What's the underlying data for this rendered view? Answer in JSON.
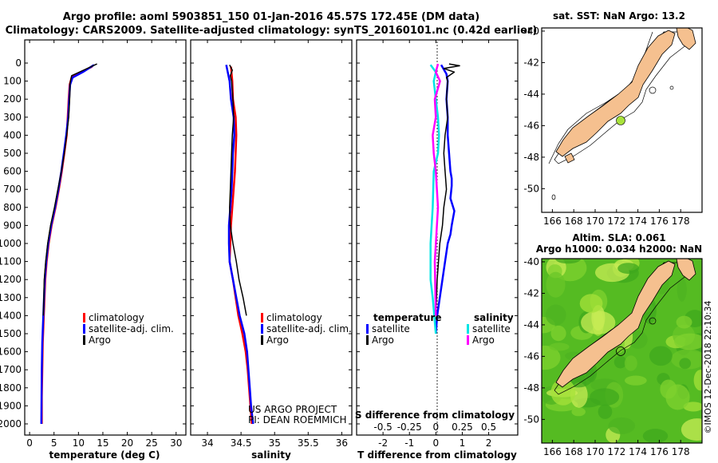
{
  "title_line1": "Argo profile: aoml 5903851_150 01-Jan-2016 45.57S 172.45E (DM data)",
  "title_line2": "Climatology: CARS2009. Satellite-adjusted climatology: synTS_20160101.nc (0.42d earlier)",
  "colors": {
    "climatology": "#ff0000",
    "satellite": "#0000ff",
    "argo": "#000000",
    "sal_satellite": "#00e5e5",
    "sal_argo": "#ff00ff",
    "land": "#f5c08f",
    "ocean_green": "#55bb22",
    "argo_marker": "#a9e23c"
  },
  "depth_ticks": [
    "0",
    "100",
    "200",
    "300",
    "400",
    "500",
    "600",
    "700",
    "800",
    "900",
    "1000",
    "1100",
    "1200",
    "1300",
    "1400",
    "1500",
    "1600",
    "1700",
    "1800",
    "1900",
    "2000"
  ],
  "chart_data": [
    {
      "type": "line",
      "name": "temperature",
      "xlabel": "temperature (deg C)",
      "ylabel": "depth",
      "xlim": [
        -1,
        32
      ],
      "ylim": [
        2000,
        0
      ],
      "xticks": [
        "0",
        "5",
        "10",
        "15",
        "20",
        "25",
        "30"
      ],
      "legend": [
        "climatology",
        "satellite-adj. clim.",
        "Argo"
      ],
      "series": [
        {
          "name": "climatology",
          "x": [
            12.8,
            10.5,
            8.6,
            8.2,
            8.0,
            7.8,
            7.6,
            7.1,
            6.6,
            6.0,
            5.3,
            4.5,
            3.9,
            3.5,
            3.2,
            2.9,
            2.7,
            2.6,
            2.5,
            2.5
          ],
          "depth": [
            20,
            50,
            80,
            120,
            200,
            300,
            400,
            500,
            600,
            700,
            800,
            900,
            1000,
            1100,
            1200,
            1400,
            1550,
            1700,
            1850,
            2000
          ]
        },
        {
          "name": "satellite-adj. clim.",
          "x": [
            13.2,
            10.9,
            8.8,
            8.3,
            8.1,
            7.9,
            7.5,
            7.0,
            6.5,
            5.9,
            5.2,
            4.4,
            3.8,
            3.4,
            3.1,
            2.8,
            2.6,
            2.5,
            2.45,
            2.4
          ],
          "depth": [
            10,
            50,
            80,
            120,
            200,
            300,
            400,
            500,
            600,
            700,
            800,
            900,
            1000,
            1100,
            1200,
            1400,
            1550,
            1700,
            1850,
            2000
          ]
        },
        {
          "name": "Argo",
          "x": [
            13.8,
            11.0,
            8.6,
            8.3,
            8.2,
            8.0,
            7.6,
            7.1,
            6.5,
            5.8,
            5.1,
            4.3,
            3.7,
            3.3,
            3.0,
            2.8
          ],
          "depth": [
            5,
            40,
            70,
            110,
            200,
            300,
            400,
            500,
            600,
            700,
            800,
            900,
            1000,
            1100,
            1200,
            1400
          ]
        }
      ]
    },
    {
      "type": "line",
      "name": "salinity",
      "xlabel": "salinity",
      "ylabel": "depth",
      "xlim": [
        33.75,
        36.15
      ],
      "ylim": [
        2000,
        0
      ],
      "xticks": [
        "34",
        "34.5",
        "35",
        "35.5",
        "36"
      ],
      "legend": [
        "climatology",
        "satellite-adj. clim.",
        "Argo"
      ],
      "annotations": [
        "US ARGO PROJECT",
        "PI: DEAN ROEMMICH"
      ],
      "series": [
        {
          "name": "climatology",
          "x": [
            34.35,
            34.37,
            34.38,
            34.42,
            34.43,
            34.42,
            34.41,
            34.39,
            34.37,
            34.35,
            34.34,
            34.33,
            34.38,
            34.42,
            34.46,
            34.52,
            34.57,
            34.6,
            34.62,
            34.64,
            34.66
          ],
          "depth": [
            20,
            100,
            200,
            300,
            400,
            500,
            600,
            700,
            800,
            900,
            1000,
            1100,
            1200,
            1300,
            1400,
            1500,
            1600,
            1700,
            1800,
            1900,
            2000
          ]
        },
        {
          "name": "satellite-adj. clim.",
          "x": [
            34.28,
            34.33,
            34.35,
            34.39,
            34.4,
            34.38,
            34.37,
            34.36,
            34.34,
            34.32,
            34.32,
            34.33,
            34.38,
            34.43,
            34.48,
            34.55,
            34.59,
            34.61,
            34.63,
            34.65,
            34.68
          ],
          "depth": [
            10,
            100,
            200,
            300,
            400,
            500,
            600,
            700,
            800,
            900,
            1000,
            1100,
            1200,
            1300,
            1400,
            1500,
            1600,
            1700,
            1800,
            1900,
            2000
          ]
        },
        {
          "name": "Argo",
          "x": [
            34.33,
            34.37,
            34.34,
            34.36,
            34.38,
            34.39,
            34.37,
            34.36,
            34.35,
            34.34,
            34.33,
            34.34,
            34.38,
            34.43,
            34.47,
            34.53,
            34.58
          ],
          "depth": [
            10,
            40,
            70,
            100,
            200,
            300,
            400,
            500,
            600,
            700,
            800,
            900,
            1000,
            1100,
            1200,
            1300,
            1400
          ]
        }
      ]
    },
    {
      "type": "line",
      "name": "differences",
      "xlabel": "T difference from climatology",
      "xlabel_top": "S difference from climatology",
      "ylabel": "depth",
      "xlim": [
        -3,
        3.1
      ],
      "ylim": [
        2000,
        0
      ],
      "xticks": [
        "-2",
        "-1",
        "0",
        "1",
        "2"
      ],
      "xticks_top": [
        "-0.5",
        "-0.25",
        "0",
        "0.25",
        "0.5"
      ],
      "legend_titles": [
        "temperature",
        "salinity"
      ],
      "legend": [
        "satellite",
        "Argo",
        "satellite",
        "Argo"
      ],
      "series": [
        {
          "name": "temperature satellite",
          "x": [
            0.2,
            0.4,
            0.45,
            0.4,
            0.45,
            0.45,
            0.5,
            0.55,
            0.6,
            0.6,
            0.55,
            0.7,
            0.6,
            0.55,
            0.45,
            0.35,
            0.25,
            0.15,
            0.05,
            0.0
          ],
          "depth": [
            10,
            60,
            100,
            200,
            300,
            400,
            500,
            600,
            640,
            680,
            750,
            820,
            900,
            950,
            1000,
            1100,
            1200,
            1300,
            1400,
            1500
          ]
        },
        {
          "name": "temperature Argo",
          "x": [
            0.5,
            0.9,
            0.3,
            0.7,
            0.4,
            0.45,
            0.4,
            0.45,
            0.35,
            0.3,
            0.35,
            0.4,
            0.3,
            0.25,
            0.15,
            0.05,
            0.0
          ],
          "depth": [
            5,
            15,
            30,
            50,
            80,
            100,
            200,
            300,
            400,
            500,
            600,
            700,
            800,
            900,
            1000,
            1200,
            1400
          ]
        },
        {
          "name": "salinity satellite",
          "x": [
            -0.05,
            0.0,
            -0.02,
            0.0,
            0.02,
            0.03,
            0.02,
            -0.02,
            -0.03,
            -0.05,
            -0.05,
            -0.03,
            0.0
          ],
          "depth": [
            10,
            50,
            100,
            200,
            300,
            400,
            500,
            600,
            800,
            1000,
            1200,
            1300,
            1500
          ]
        },
        {
          "name": "salinity Argo",
          "x": [
            0.02,
            0.0,
            0.04,
            -0.01,
            0.0,
            -0.03,
            -0.02,
            0.0,
            0.02,
            -0.01,
            0.0
          ],
          "depth": [
            5,
            50,
            100,
            200,
            300,
            400,
            500,
            600,
            800,
            1100,
            1400
          ]
        }
      ]
    },
    {
      "type": "map",
      "name": "SST map",
      "title": "sat. SST: NaN Argo: 13.2",
      "xticks": [
        "166",
        "168",
        "170",
        "172",
        "174",
        "176",
        "178"
      ],
      "yticks": [
        "-40",
        "-42",
        "-44",
        "-46",
        "-48",
        "-50"
      ],
      "xlim": [
        165,
        180
      ],
      "ylim": [
        -51.5,
        -39.8
      ],
      "marker": {
        "lon": 172.45,
        "lat": -45.57
      }
    },
    {
      "type": "map",
      "name": "SLA map",
      "title_line1": "Altim. SLA: 0.061",
      "title_line2": "Argo h1000: 0.034 h2000: NaN",
      "xticks": [
        "166",
        "168",
        "170",
        "172",
        "174",
        "176",
        "178"
      ],
      "yticks": [
        "-40",
        "-42",
        "-44",
        "-46",
        "-48",
        "-50"
      ],
      "xlim": [
        165,
        180
      ],
      "ylim": [
        -51.5,
        -39.8
      ],
      "marker": {
        "lon": 172.45,
        "lat": -45.57
      }
    }
  ],
  "credit": "©IMOS 12-Dec-2018 22:10:34"
}
